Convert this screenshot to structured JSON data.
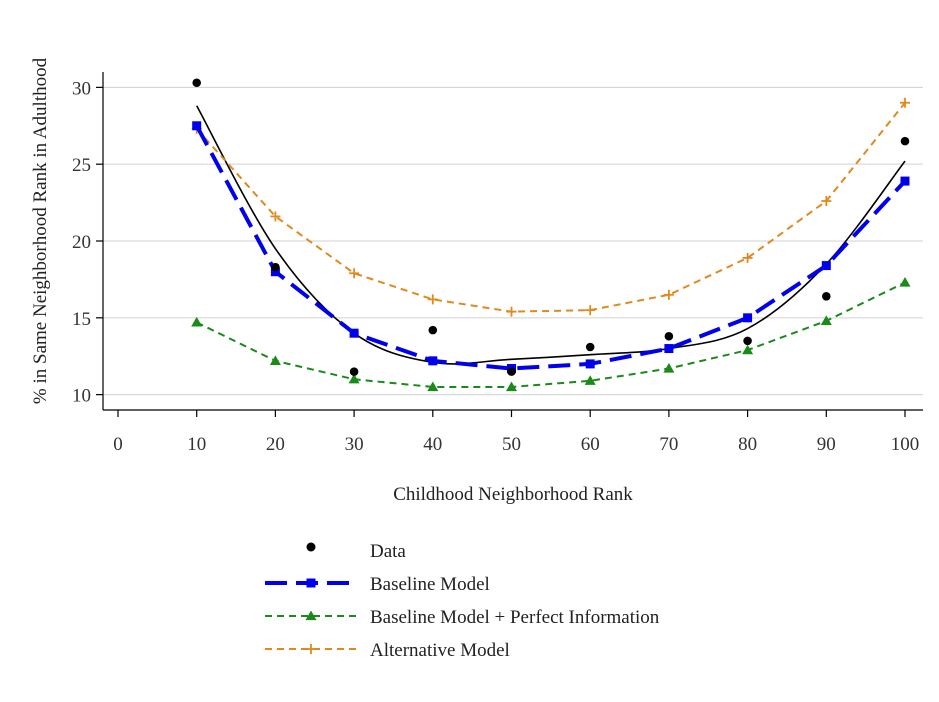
{
  "chart_data": {
    "type": "line",
    "xlabel": "Childhood Neighborhood Rank",
    "ylabel": "% in Same Neighborhood Rank in Adulthood",
    "xlim": [
      0,
      100
    ],
    "ylim": [
      9,
      31
    ],
    "xticks": [
      0,
      10,
      20,
      30,
      40,
      50,
      60,
      70,
      80,
      90,
      100
    ],
    "yticks": [
      10,
      15,
      20,
      25,
      30
    ],
    "grid": "horizontal",
    "legend_position": "bottom",
    "x": [
      10,
      20,
      30,
      40,
      50,
      60,
      70,
      80,
      90,
      100
    ],
    "series": [
      {
        "name": "Data",
        "style": "points",
        "color": "#000000",
        "marker": "circle",
        "values": [
          30.3,
          18.3,
          11.5,
          14.2,
          11.5,
          13.1,
          13.8,
          13.5,
          16.4,
          26.5
        ]
      },
      {
        "name": "Baseline Model",
        "style": "long-dash",
        "color": "#0000ee",
        "marker": "square",
        "values": [
          27.5,
          18.0,
          14.0,
          12.2,
          11.7,
          12.0,
          13.0,
          15.0,
          18.4,
          23.9
        ]
      },
      {
        "name": "Baseline Model + Perfect Information",
        "style": "short-dash",
        "color": "#1a8a1a",
        "marker": "triangle",
        "values": [
          14.7,
          12.2,
          11.0,
          10.5,
          10.5,
          10.9,
          11.7,
          12.9,
          14.8,
          17.3
        ]
      },
      {
        "name": "Alternative Model",
        "style": "short-dash",
        "color": "#e08a1e",
        "marker": "plus",
        "values": [
          27.3,
          21.6,
          17.9,
          16.2,
          15.4,
          15.5,
          16.5,
          18.9,
          22.6,
          29.0
        ]
      }
    ],
    "fit_line": {
      "color": "#000000",
      "x": [
        10,
        20,
        30,
        40,
        50,
        60,
        70,
        80,
        90,
        100
      ],
      "values": [
        28.8,
        19.5,
        14.0,
        12.1,
        12.3,
        12.6,
        13.0,
        14.3,
        18.5,
        25.2
      ]
    }
  }
}
